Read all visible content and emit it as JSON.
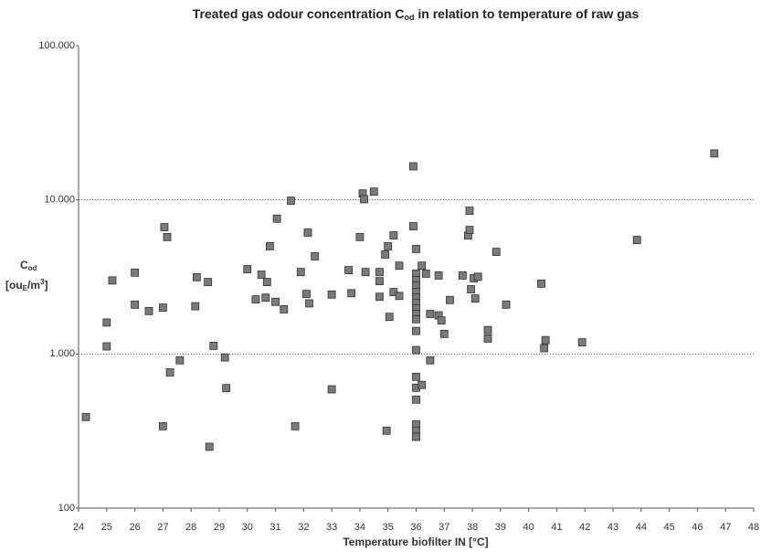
{
  "chart_data": {
    "type": "scatter",
    "title": "Treated gas odour concentration C",
    "title_subscript": "od",
    "title_end": " in relation to temperature of raw gas",
    "y_label": "C",
    "y_label_subscript": "od",
    "y_unit": "[ou",
    "y_unit_subscript": "E",
    "y_unit_mid": "/m",
    "y_unit_superscript": "3",
    "y_unit_end": "]",
    "x_label": "Temperature biofilter IN [°C]",
    "color": "#7a7a7a",
    "ylog": true,
    "grid": true,
    "xlim": [
      24,
      48
    ],
    "xticks": [
      24,
      25,
      26,
      27,
      28,
      29,
      30,
      31,
      32,
      33,
      34,
      35,
      36,
      37,
      38,
      39,
      40,
      41,
      42,
      43,
      44,
      45,
      46,
      47,
      48
    ],
    "ylim": [
      100,
      100000
    ],
    "yticks": [
      100,
      {
        "value": 1000,
        "label": "1.000"
      },
      {
        "value": 10000,
        "label": "10.000"
      },
      {
        "value": 100000,
        "label": "100.000"
      }
    ],
    "x": [
      24.26,
      25,
      25,
      25.2,
      26,
      26,
      26.5,
      27,
      27,
      27.05,
      27.15,
      27.25,
      27.6,
      28.15,
      28.2,
      28.6,
      28.65,
      28.8,
      29.2,
      29.25,
      30,
      30.3,
      30.5,
      30.7,
      30.65,
      30.8,
      31,
      31.05,
      31.3,
      31.55,
      31.7,
      31.9,
      32.1,
      32.15,
      32.2,
      32.4,
      33,
      33,
      33.7,
      33.6,
      34,
      34.1,
      34.15,
      34.2,
      34.5,
      34.7,
      34.7,
      34.7,
      34.9,
      35,
      35.05,
      34.95,
      35.2,
      35.2,
      35.4,
      35.4,
      35.9,
      35.9,
      36,
      36,
      36,
      36,
      36,
      36,
      36,
      36,
      36,
      36,
      36,
      36,
      36,
      36,
      36,
      36,
      36,
      36,
      36.2,
      36.2,
      36.35,
      36.5,
      36.5,
      36.8,
      36.8,
      36.9,
      37,
      37.2,
      37.65,
      37.85,
      37.9,
      37.9,
      37.95,
      38.05,
      38.1,
      38.2,
      38.55,
      38.55,
      38.85,
      39.2,
      40.45,
      40.55,
      40.6,
      41.9,
      43.85,
      46.6
    ],
    "values": [
      390,
      1600,
      1120,
      3000,
      3370,
      2090,
      1900,
      2000,
      340,
      6650,
      5740,
      760,
      910,
      2040,
      3150,
      2930,
      250,
      1130,
      950,
      600,
      3550,
      2260,
      3270,
      2930,
      2320,
      5000,
      2180,
      7550,
      1950,
      9870,
      340,
      3400,
      2450,
      6130,
      2130,
      4300,
      2430,
      590,
      2480,
      3500,
      5740,
      11000,
      10100,
      3400,
      11300,
      3400,
      2970,
      2350,
      4420,
      5000,
      1740,
      318,
      2520,
      5880,
      3740,
      2380,
      16500,
      6740,
      4800,
      3320,
      3010,
      2780,
      2520,
      2330,
      2140,
      1980,
      1820,
      1680,
      1410,
      1060,
      711,
      604,
      506,
      350,
      318,
      290,
      630,
      3740,
      3320,
      1820,
      910,
      3230,
      1780,
      1650,
      1350,
      2240,
      3230,
      5870,
      6380,
      8500,
      2630,
      3100,
      2290,
      3170,
      1430,
      1260,
      4600,
      2090,
      2860,
      1090,
      1230,
      1190,
      5490,
      20000
    ]
  }
}
